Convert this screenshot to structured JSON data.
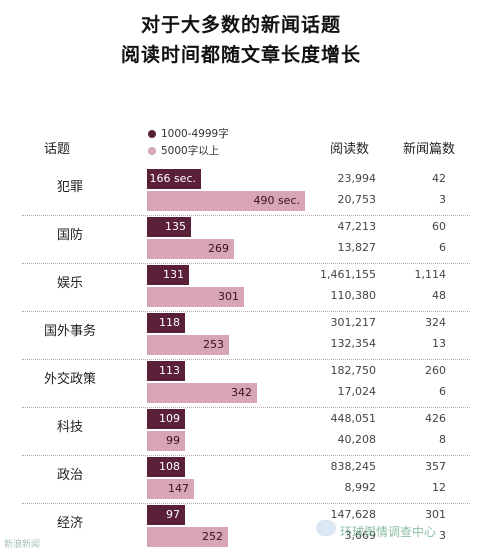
{
  "title_line1": "对于大多数的新闻话题",
  "title_line2": "阅读时间都随文章长度增长",
  "legend": [
    {
      "label": "1000-4999字",
      "color": "#5a2038"
    },
    {
      "label": "5000字以上",
      "color": "#d7a5b7"
    }
  ],
  "headers": {
    "topic": "话题",
    "reads": "阅读数",
    "count": "新闻篇数"
  },
  "watermark_left": "新浪新闻",
  "watermark_right": "环球舆情调查中心",
  "chart_data": {
    "type": "bar",
    "orientation": "horizontal",
    "title": "对于大多数的新闻话题 阅读时间都随文章长度增长",
    "categories": [
      "犯罪",
      "国防",
      "娱乐",
      "国外事务",
      "外交政策",
      "科技",
      "政治",
      "经济"
    ],
    "series": [
      {
        "name": "1000-4999字",
        "values": [
          166,
          135,
          131,
          118,
          113,
          109,
          108,
          97
        ],
        "labels": [
          "166 sec.",
          "135",
          "131",
          "118",
          "113",
          "109",
          "108",
          "97"
        ],
        "reads": [
          "23,994",
          "47,213",
          "1,461,155",
          "301,217",
          "182,750",
          "448,051",
          "838,245",
          "147,628"
        ],
        "articles": [
          "42",
          "60",
          "1,114",
          "324",
          "260",
          "426",
          "357",
          "301"
        ]
      },
      {
        "name": "5000字以上",
        "values": [
          490,
          269,
          301,
          253,
          342,
          99,
          147,
          252
        ],
        "labels": [
          "490 sec.",
          "269",
          "301",
          "253",
          "342",
          "99",
          "147",
          "252"
        ],
        "reads": [
          "20,753",
          "13,827",
          "110,380",
          "132,354",
          "17,024",
          "40,208",
          "8,992",
          "3,669"
        ],
        "articles": [
          "3",
          "6",
          "48",
          "13",
          "6",
          "8",
          "12",
          "3"
        ]
      }
    ],
    "xlim": [
      0,
      490
    ]
  }
}
